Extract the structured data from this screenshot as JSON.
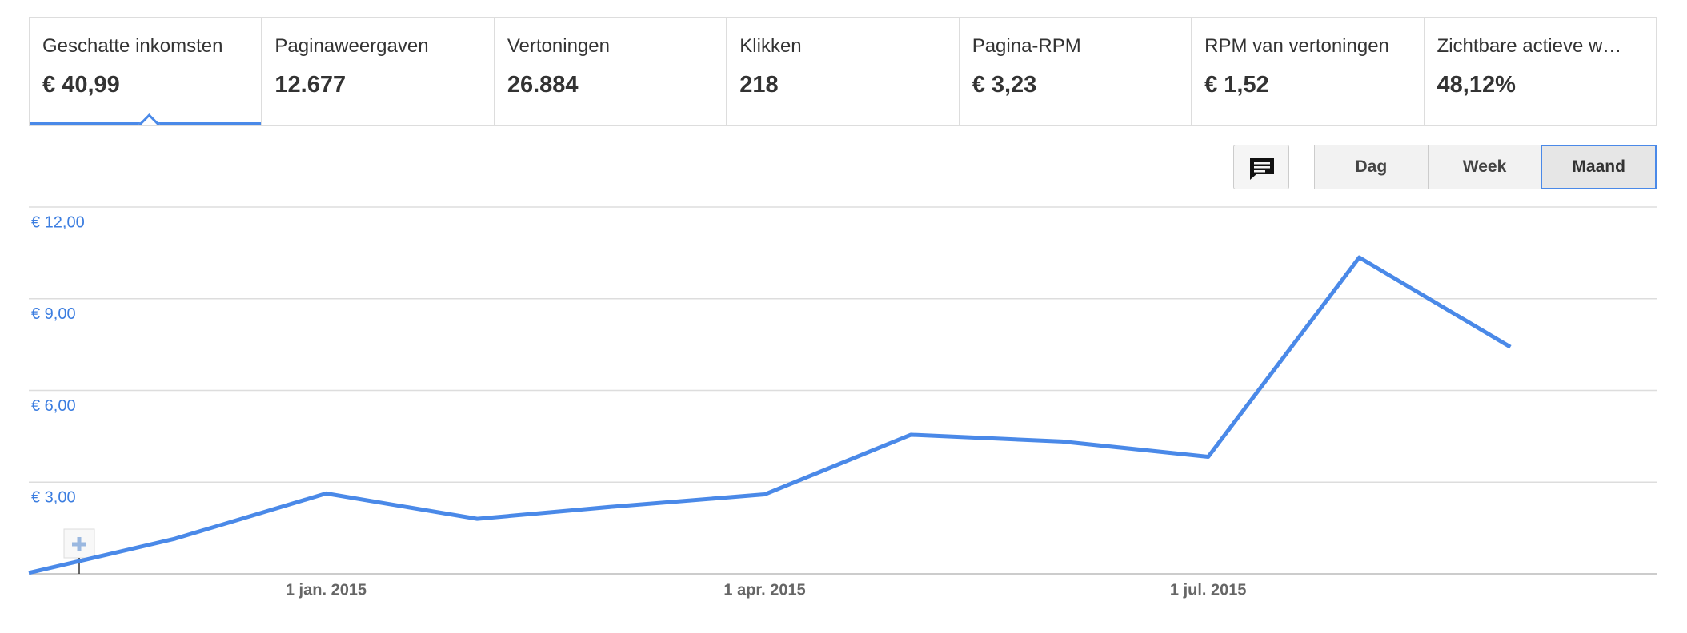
{
  "tabs": [
    {
      "label": "Geschatte inkomsten",
      "value": "€ 40,99"
    },
    {
      "label": "Paginaweergaven",
      "value": "12.677"
    },
    {
      "label": "Vertoningen",
      "value": "26.884"
    },
    {
      "label": "Klikken",
      "value": "218"
    },
    {
      "label": "Pagina-RPM",
      "value": "€ 3,23"
    },
    {
      "label": "RPM van vertoningen",
      "value": "€ 1,52"
    },
    {
      "label": "Zichtbare actieve w…",
      "value": "48,12%"
    }
  ],
  "buttons": [
    "Dag",
    "Week",
    "Maand"
  ],
  "chart_data": {
    "type": "line",
    "x": [
      "2014-11",
      "2014-12",
      "2015-01",
      "2015-02",
      "2015-03",
      "2015-04",
      "2015-05",
      "2015-06",
      "2015-07",
      "2015-08",
      "2015-09"
    ],
    "series": [
      {
        "name": "Geschatte inkomsten",
        "color": "#4a89e8",
        "values": [
          0.03,
          1.15,
          2.63,
          1.8,
          2.2,
          2.6,
          4.55,
          4.33,
          3.83,
          10.35,
          7.42
        ]
      }
    ],
    "xlim": [
      "2014-11",
      "2015-10"
    ],
    "xticks": [
      {
        "value": "2015-01",
        "label": "1 jan. 2015"
      },
      {
        "value": "2015-04",
        "label": "1 apr. 2015"
      },
      {
        "value": "2015-07",
        "label": "1 jul. 2015"
      }
    ],
    "ylim": [
      0,
      12
    ],
    "yticks": [
      {
        "value": 3,
        "label": "€ 3,00"
      },
      {
        "value": 6,
        "label": "€ 6,00"
      },
      {
        "value": 9,
        "label": "€ 9,00"
      },
      {
        "value": 12,
        "label": "€ 12,00"
      }
    ],
    "grid": true
  }
}
